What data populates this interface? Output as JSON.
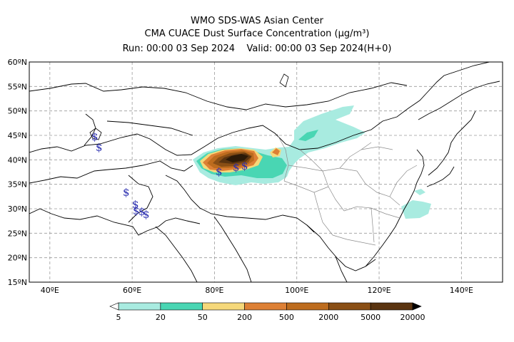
{
  "title": {
    "line1": "WMO SDS-WAS Asian Center",
    "line2": "CMA CUACE Dust Surface Concentration (μg/m³)",
    "line3": "Run: 00:00 03 Sep 2024    Valid: 00:00 03 Sep 2024(H+0)"
  },
  "map": {
    "lat_labels": [
      "60ºN",
      "55ºN",
      "50ºN",
      "45ºN",
      "40ºN",
      "35ºN",
      "30ºN",
      "25ºN",
      "20ºN",
      "15ºN"
    ],
    "lon_labels": [
      "40ºE",
      "60ºE",
      "80ºE",
      "100ºE",
      "120ºE",
      "140ºE"
    ],
    "lat_range": [
      15,
      60
    ],
    "lon_range": [
      35,
      150
    ],
    "colors": {
      "grid": "#9a9a9a",
      "coast": "#000000",
      "province": "#8c8c8c",
      "storm_symbol": "#2b2fb0"
    }
  },
  "legend": {
    "labels": [
      "5",
      "20",
      "50",
      "200",
      "500",
      "2000",
      "5000",
      "20000"
    ],
    "colors": [
      "#a8ebe0",
      "#49d6b3",
      "#f5d87a",
      "#dd8035",
      "#bd6c1e",
      "#8a4f15",
      "#5a3410",
      "#2b1a08"
    ],
    "below_color": "#ffffff",
    "above_color": "#000000"
  }
}
